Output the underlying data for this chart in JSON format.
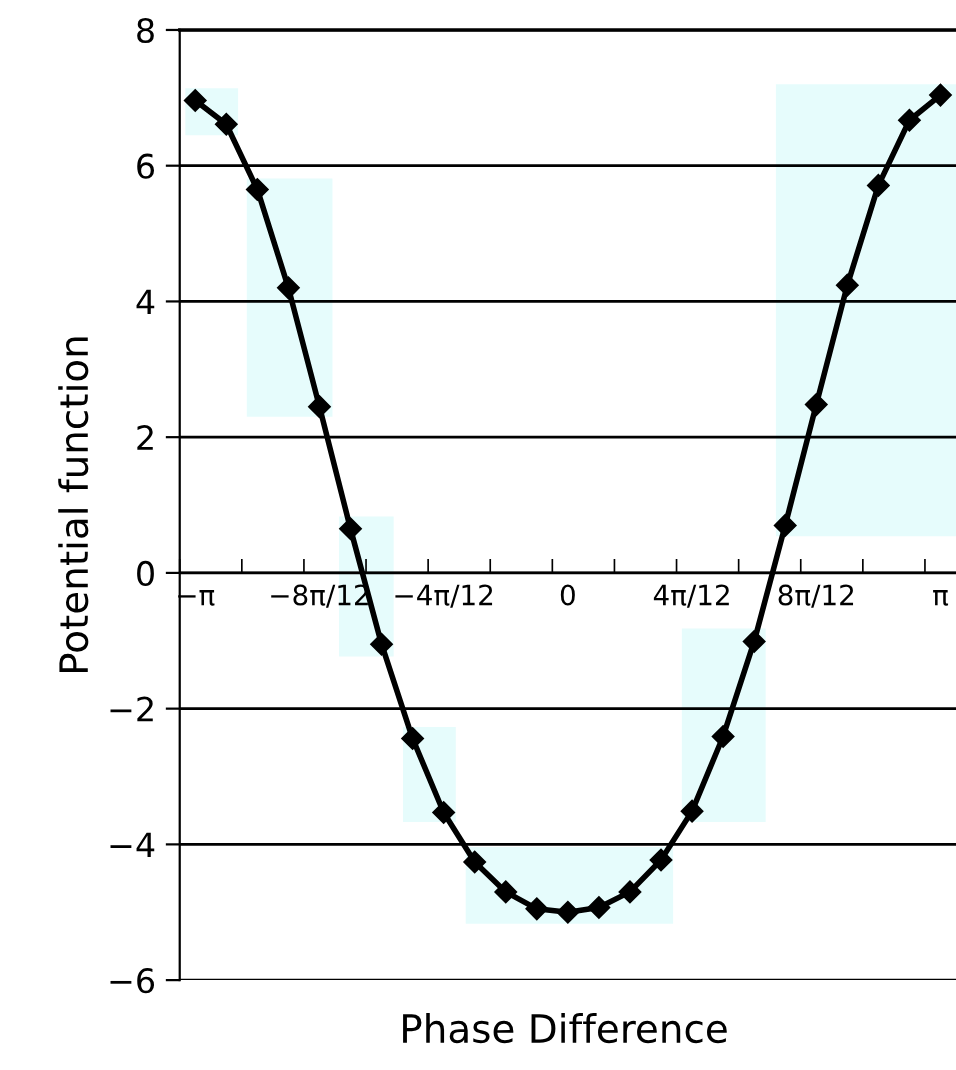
{
  "chart_data": {
    "type": "line",
    "xlabel": "Phase Difference",
    "ylabel": "Potential function",
    "categories": [
      "−π",
      null,
      null,
      null,
      "−8π/12",
      null,
      null,
      null,
      "−4π/12",
      null,
      null,
      null,
      "0",
      null,
      null,
      null,
      "4π/12",
      null,
      null,
      null,
      "8π/12",
      null,
      null,
      null,
      "π"
    ],
    "series": [
      {
        "color": "#000000",
        "values": [
          6.96,
          6.61,
          5.65,
          4.2,
          2.45,
          0.65,
          -1.05,
          -2.44,
          -3.53,
          -4.26,
          -4.7,
          -4.95,
          -5.0,
          -4.93,
          -4.7,
          -4.23,
          -3.51,
          -2.41,
          -1.01,
          0.7,
          2.48,
          4.24,
          5.71,
          6.67,
          7.04
        ]
      }
    ],
    "ylim": [
      -6,
      8
    ],
    "yticks": [
      {
        "value": -6,
        "label": "−6"
      },
      {
        "value": -4,
        "label": "−4"
      },
      {
        "value": -2,
        "label": "−2"
      },
      0,
      2,
      4,
      6,
      8
    ],
    "grid": "y",
    "marker": "diamond",
    "line_style": "solid"
  }
}
